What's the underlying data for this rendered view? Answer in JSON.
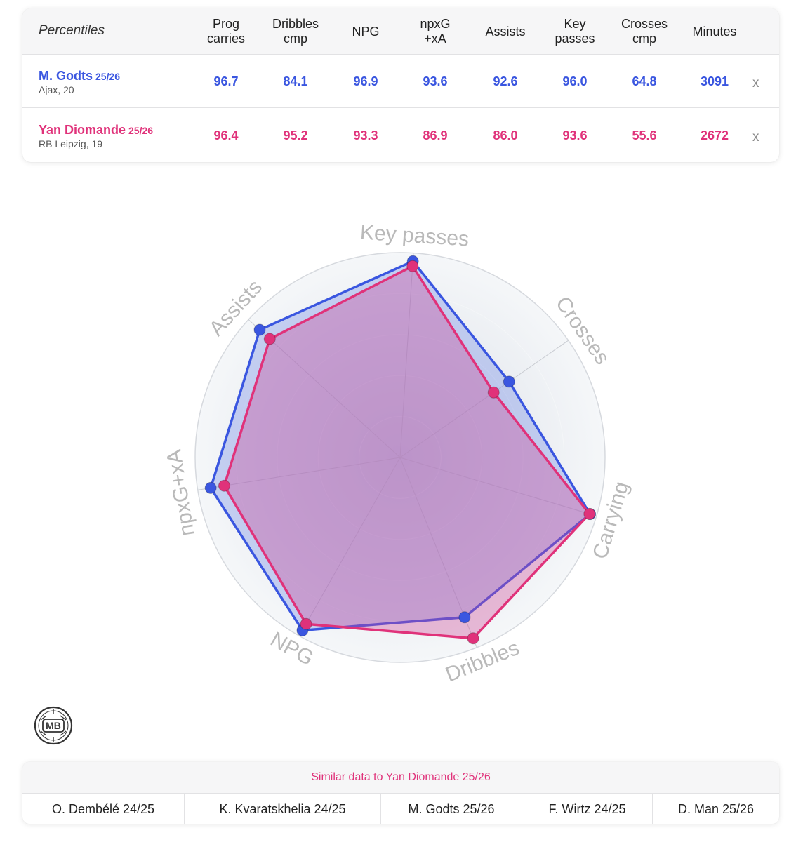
{
  "table": {
    "header_title": "Percentiles",
    "columns": [
      "Prog\ncarries",
      "Dribbles\ncmp",
      "NPG",
      "npxG\n+xA",
      "Assists",
      "Key\npasses",
      "Crosses\ncmp",
      "Minutes"
    ],
    "players": [
      {
        "name": "M. Godts",
        "season": "25/26",
        "club": "Ajax, 20",
        "values": [
          "96.7",
          "84.1",
          "96.9",
          "93.6",
          "92.6",
          "96.0",
          "64.8",
          "3091"
        ],
        "remove_label": "x",
        "color": "#3a56e0"
      },
      {
        "name": "Yan Diomande",
        "season": "25/26",
        "club": "RB Leipzig, 19",
        "values": [
          "96.4",
          "95.2",
          "93.3",
          "86.9",
          "86.0",
          "93.6",
          "55.6",
          "2672"
        ],
        "remove_label": "x",
        "color": "#e0327a"
      }
    ]
  },
  "chart_data": {
    "type": "radar",
    "axes": [
      "Key passes",
      "Crosses",
      "Carrying",
      "Dribbles",
      "NPG",
      "npxG+xA",
      "Assists"
    ],
    "range": [
      0,
      100
    ],
    "grid": true,
    "series": [
      {
        "name": "M. Godts 25/26",
        "color": "#3a56e0",
        "values": [
          96.0,
          64.8,
          96.7,
          84.1,
          96.9,
          93.6,
          92.6
        ]
      },
      {
        "name": "Yan Diomande 25/26",
        "color": "#e0327a",
        "values": [
          93.6,
          55.6,
          96.4,
          95.2,
          93.3,
          86.9,
          86.0
        ]
      }
    ]
  },
  "logo_text": "MB",
  "similar": {
    "title": "Similar data to Yan Diomande 25/26",
    "players": [
      "O. Dembélé 24/25",
      "K. Kvaratskhelia 24/25",
      "M. Godts 25/26",
      "F. Wirtz 24/25",
      "D. Man 25/26"
    ]
  }
}
